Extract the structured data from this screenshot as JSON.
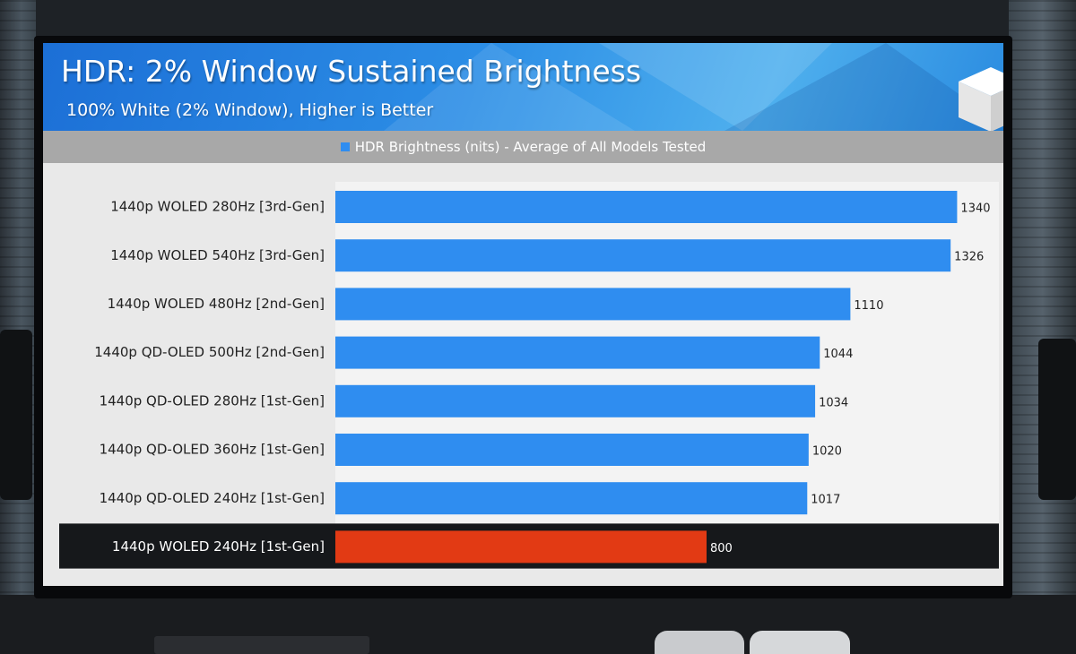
{
  "title": "HDR: 2% Window Sustained Brightness",
  "subtitle": "100% White (2% Window), Higher is Better",
  "colors": {
    "bar": "#2f8df0",
    "highlight_bar": "#e23a14",
    "highlight_row": "#16181b",
    "plot_bg": "#f3f3f3"
  },
  "chart_data": {
    "type": "bar",
    "orientation": "horizontal",
    "title": "HDR: 2% Window Sustained Brightness",
    "subtitle": "100% White (2% Window), Higher is Better",
    "legend": {
      "position": "top-center",
      "entries": [
        "HDR Brightness (nits) - Average of All Models Tested"
      ]
    },
    "categories": [
      "1440p WOLED 280Hz [3rd-Gen]",
      "1440p WOLED 540Hz [3rd-Gen]",
      "1440p WOLED 480Hz [2nd-Gen]",
      "1440p QD-OLED 500Hz [2nd-Gen]",
      "1440p QD-OLED 280Hz [1st-Gen]",
      "1440p QD-OLED 360Hz [1st-Gen]",
      "1440p QD-OLED 240Hz [1st-Gen]",
      "1440p WOLED 240Hz [1st-Gen]"
    ],
    "series": [
      {
        "name": "HDR Brightness (nits) - Average of All Models Tested",
        "values": [
          1340,
          1326,
          1110,
          1044,
          1034,
          1020,
          1017,
          800
        ]
      }
    ],
    "highlighted_category": "1440p WOLED 240Hz [1st-Gen]",
    "xlim": [
      0,
      1430
    ],
    "grid": false
  }
}
